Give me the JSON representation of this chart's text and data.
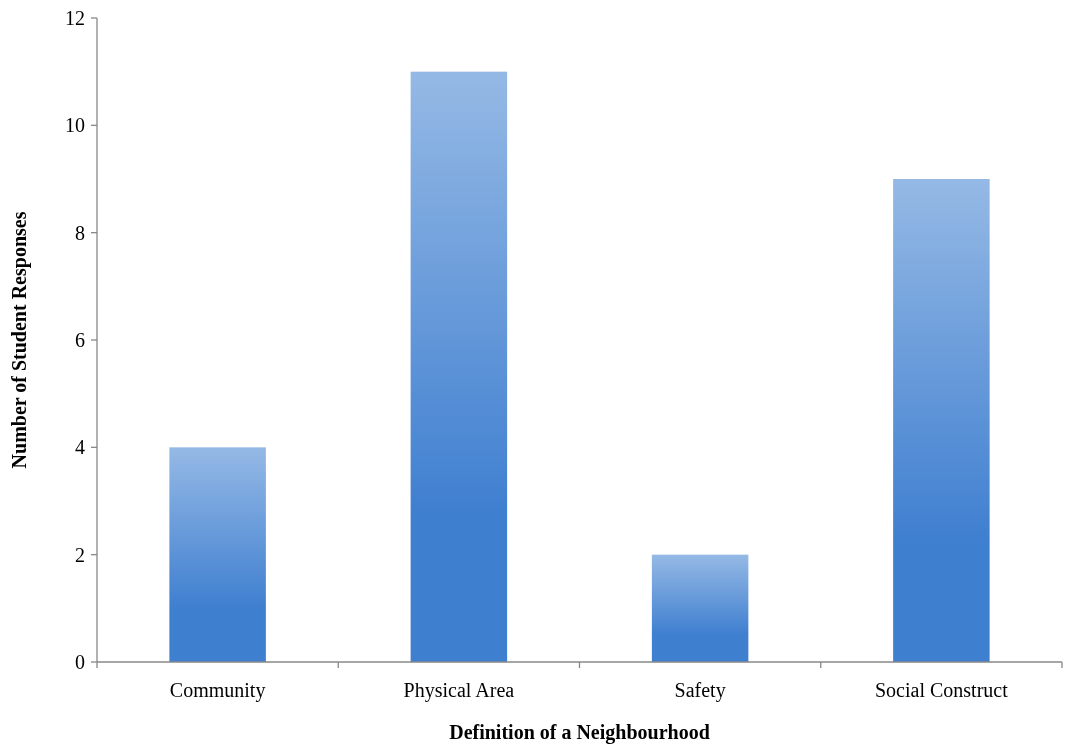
{
  "chart_data": {
    "type": "bar",
    "xlabel": "Definition of a Neighbourhood",
    "ylabel": "Number of Student Responses",
    "categories": [
      "Community",
      "Physical Area",
      "Safety",
      "Social Construct"
    ],
    "values": [
      4,
      11,
      2,
      9
    ],
    "color": "#3f7fd0",
    "ylim": [
      0,
      12
    ],
    "yticks": [
      0,
      2,
      4,
      6,
      8,
      10,
      12
    ]
  }
}
